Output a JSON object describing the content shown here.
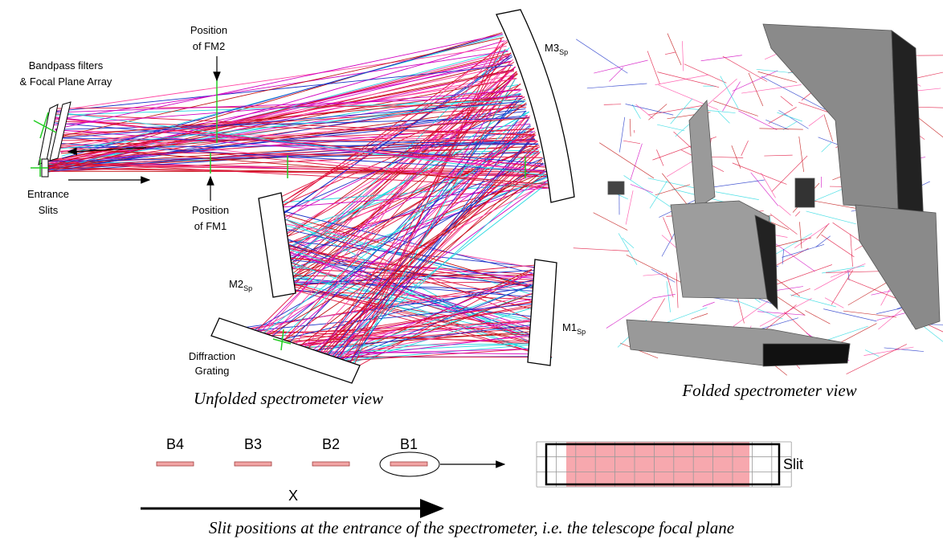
{
  "unfolded": {
    "fm2_label": [
      "Position",
      "of FM2"
    ],
    "filters_label": [
      "Bandpass filters",
      "& Focal Plane Array"
    ],
    "slits_label": [
      "Entrance",
      "Slits"
    ],
    "fm1_label": [
      "Position",
      "of FM1"
    ],
    "m3": {
      "main": "M3",
      "sub": "Sp"
    },
    "m2": {
      "main": "M2",
      "sub": "Sp"
    },
    "m1": {
      "main": "M1",
      "sub": "Sp"
    },
    "grating_label": [
      "Diffraction",
      "Grating"
    ],
    "caption": "Unfolded spectrometer view"
  },
  "folded": {
    "caption": "Folded spectrometer view"
  },
  "slits": {
    "bands": [
      "B4",
      "B3",
      "B2",
      "B1"
    ],
    "slit_label": "Slit",
    "axis_label": "X",
    "caption": "Slit positions at the entrance of the spectrometer, i.e. the telescope focal plane"
  }
}
